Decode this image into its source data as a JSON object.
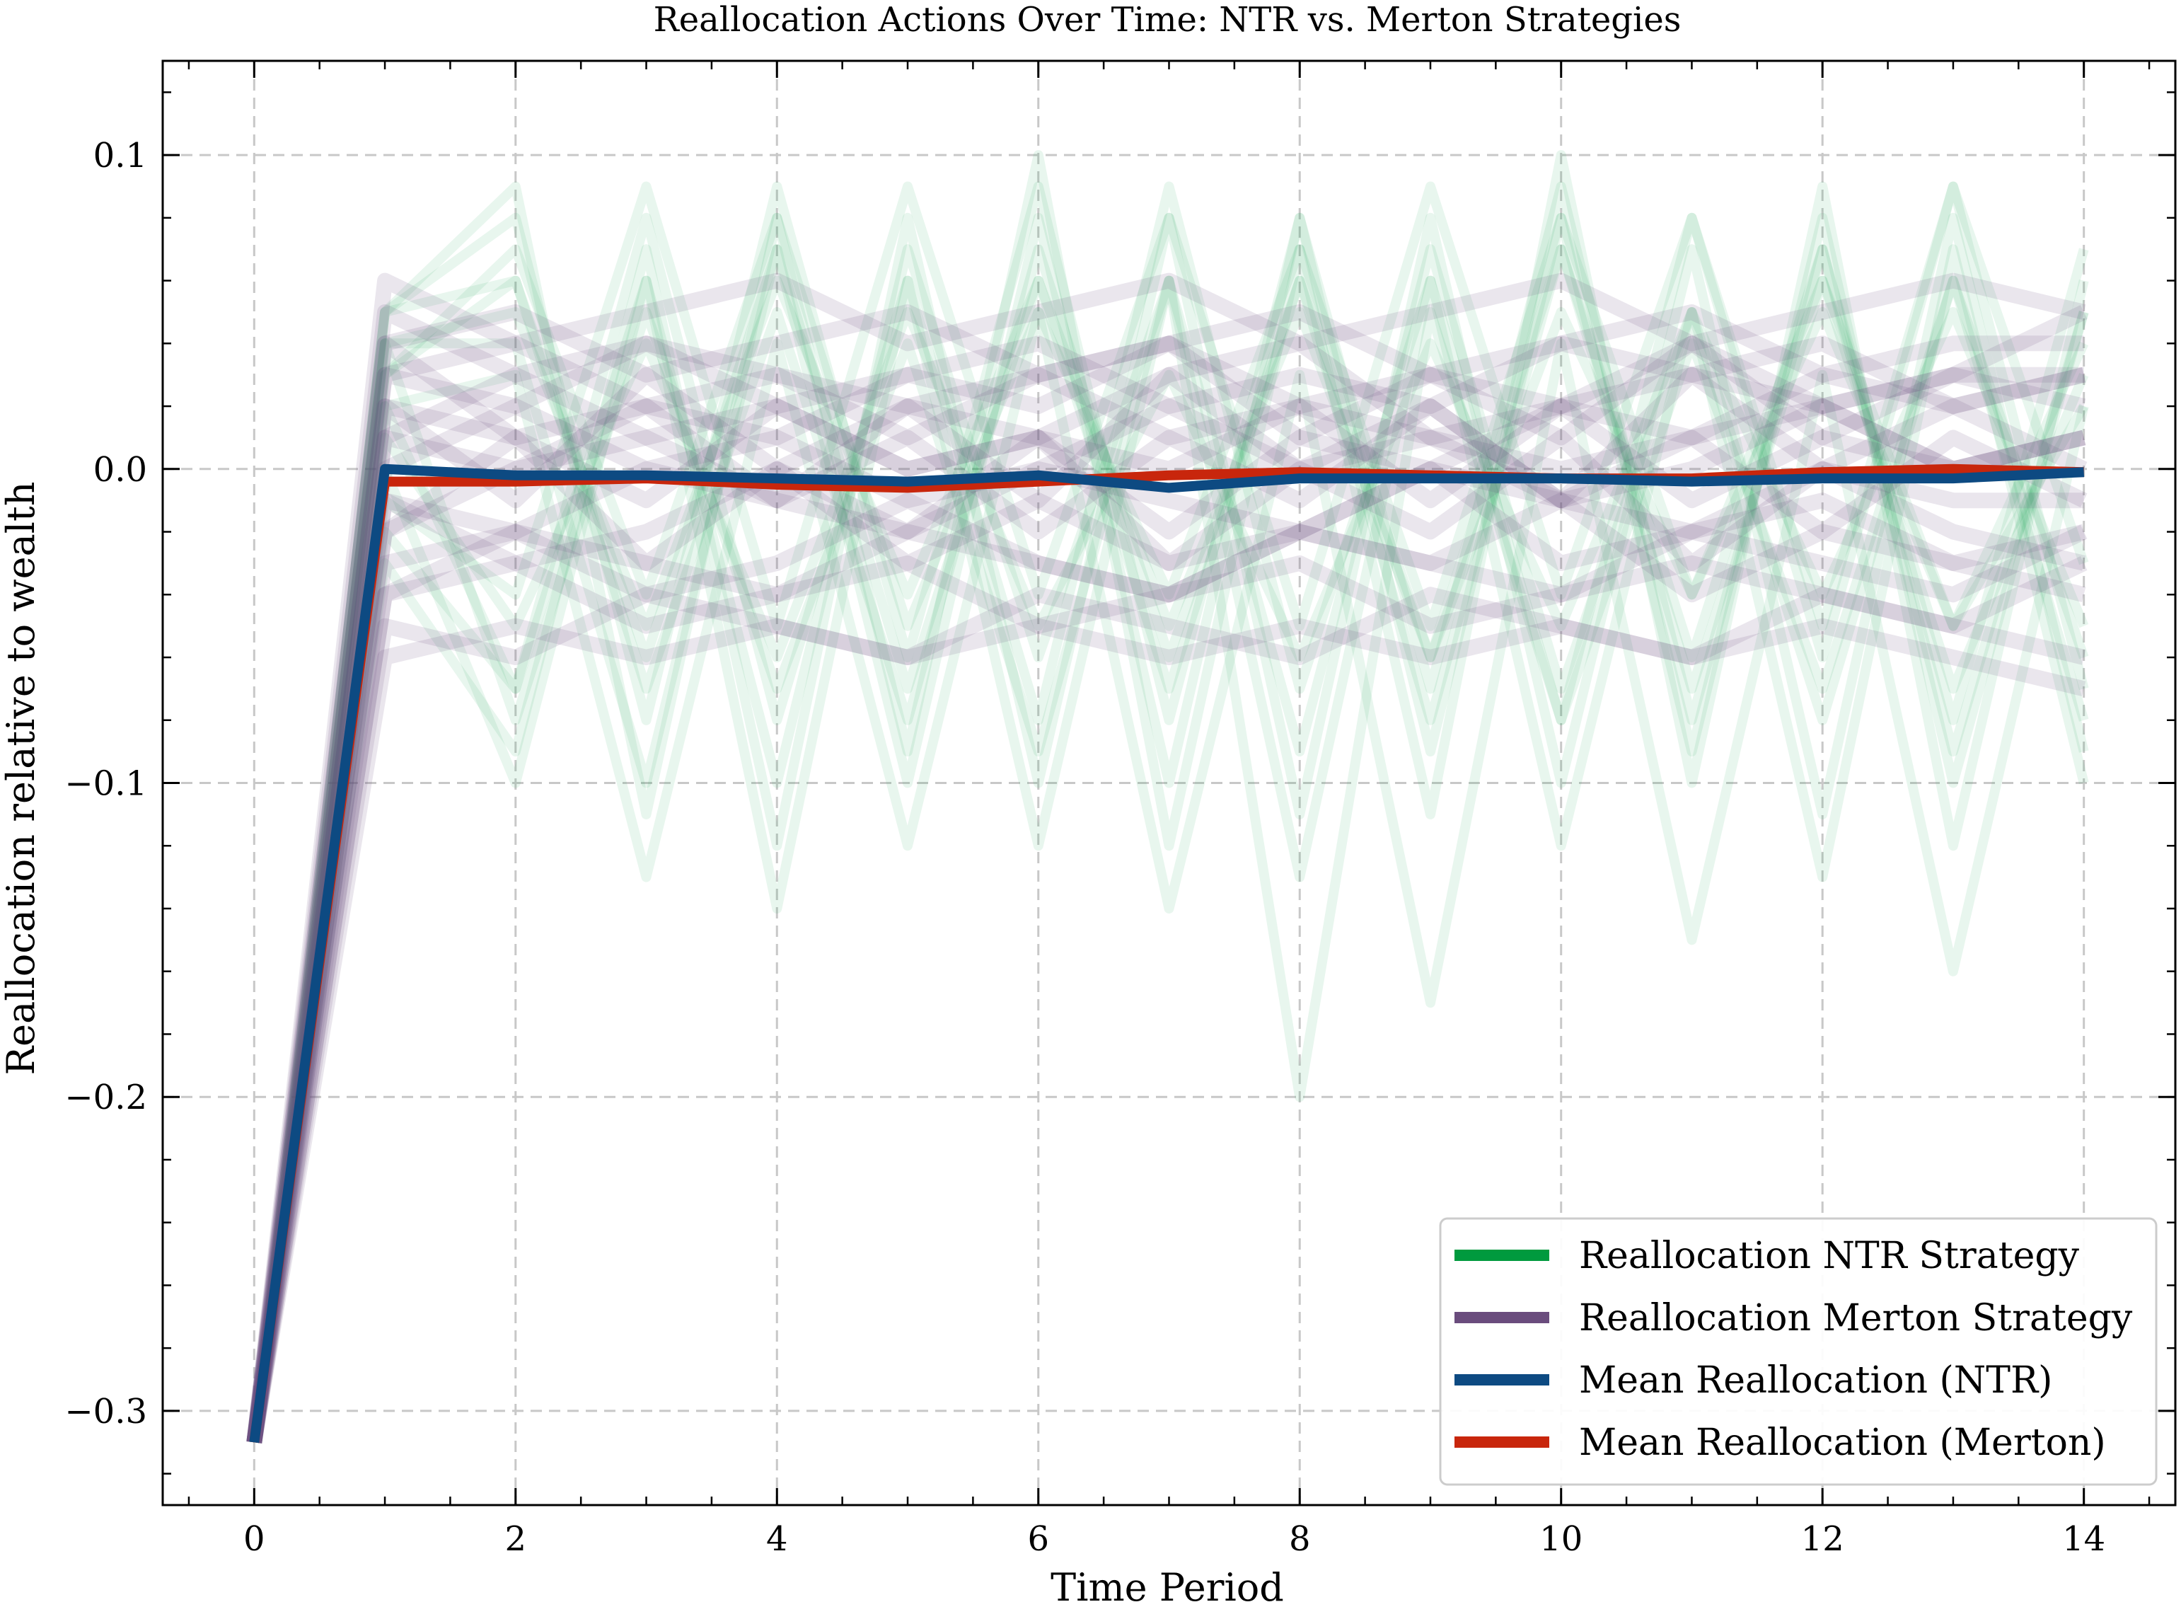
{
  "chart_data": {
    "type": "line",
    "title": "Reallocation Actions Over Time: NTR vs. Merton Strategies",
    "xlabel": "Time Period",
    "ylabel": "Reallocation relative to wealth",
    "xlim": [
      -0.7,
      14.7
    ],
    "ylim": [
      -0.33,
      0.13
    ],
    "xticks": [
      0,
      2,
      4,
      6,
      8,
      10,
      12,
      14
    ],
    "xtick_labels": [
      "0",
      "2",
      "4",
      "6",
      "8",
      "10",
      "12",
      "14"
    ],
    "yticks": [
      -0.3,
      -0.2,
      -0.1,
      0.0,
      0.1
    ],
    "ytick_labels": [
      "−0.3",
      "−0.2",
      "−0.1",
      "0.0",
      "0.1"
    ],
    "grid": true,
    "legend_position": "lower-right",
    "x": [
      0,
      1,
      2,
      3,
      4,
      5,
      6,
      7,
      8,
      9,
      10,
      11,
      12,
      13,
      14
    ],
    "series": [
      {
        "name": "Reallocation NTR Strategy",
        "color": "#009a3e",
        "style": "many semi-transparent paths, zig-zag between about -0.10 and +0.09",
        "sample_paths": [
          [
            -0.31,
            0.05,
            0.08,
            -0.08,
            0.09,
            -0.06,
            0.09,
            -0.08,
            0.08,
            -0.07,
            0.09,
            -0.08,
            0.07,
            -0.09,
            0.05
          ],
          [
            -0.31,
            0.02,
            -0.07,
            0.06,
            -0.1,
            0.07,
            -0.06,
            0.06,
            -0.09,
            0.07,
            -0.07,
            0.05,
            -0.08,
            0.06,
            -0.06
          ],
          [
            -0.31,
            0.04,
            0.05,
            -0.05,
            0.06,
            -0.04,
            0.06,
            -0.05,
            0.05,
            -0.06,
            0.05,
            -0.04,
            0.05,
            -0.05,
            0.04
          ],
          [
            -0.31,
            -0.03,
            -0.09,
            0.07,
            -0.12,
            0.08,
            -0.1,
            0.08,
            -0.11,
            0.08,
            -0.1,
            0.07,
            -0.11,
            0.08,
            -0.09
          ],
          [
            -0.31,
            0.05,
            0.09,
            -0.11,
            0.08,
            -0.09,
            0.1,
            -0.12,
            0.07,
            -0.11,
            0.1,
            -0.1,
            0.09,
            -0.12,
            0.06
          ],
          [
            -0.31,
            0.01,
            -0.05,
            0.04,
            -0.06,
            0.05,
            -0.05,
            0.03,
            -0.06,
            0.04,
            -0.05,
            0.05,
            -0.04,
            0.05,
            -0.05
          ],
          [
            -0.31,
            0.03,
            0.06,
            -0.07,
            0.05,
            -0.08,
            0.07,
            -0.06,
            0.06,
            -0.08,
            0.07,
            -0.07,
            0.06,
            -0.07,
            0.03
          ],
          [
            -0.31,
            -0.02,
            -0.07,
            0.08,
            -0.08,
            0.06,
            -0.08,
            0.09,
            -0.07,
            0.06,
            -0.08,
            0.08,
            -0.06,
            0.09,
            -0.07
          ],
          [
            -0.31,
            0.04,
            0.04,
            -0.1,
            0.07,
            -0.1,
            0.08,
            -0.1,
            0.08,
            -0.09,
            0.08,
            -0.09,
            0.08,
            -0.1,
            0.05
          ],
          [
            -0.31,
            0.0,
            -0.1,
            0.06,
            -0.14,
            0.06,
            -0.12,
            0.06,
            -0.13,
            0.06,
            -0.12,
            0.05,
            -0.13,
            0.07,
            -0.1
          ],
          [
            -0.31,
            0.03,
            0.07,
            -0.04,
            0.08,
            -0.05,
            0.05,
            -0.04,
            0.07,
            -0.05,
            0.08,
            -0.04,
            0.06,
            -0.05,
            0.02
          ],
          [
            -0.31,
            -0.01,
            -0.04,
            0.09,
            -0.05,
            0.09,
            -0.04,
            0.08,
            -0.05,
            0.09,
            -0.04,
            0.08,
            -0.05,
            0.09,
            -0.03
          ],
          [
            -0.31,
            0.02,
            0.03,
            -0.13,
            0.04,
            -0.12,
            0.05,
            -0.14,
            0.03,
            -0.17,
            0.04,
            -0.15,
            0.03,
            -0.16,
            0.02
          ],
          [
            -0.31,
            0.04,
            -0.08,
            0.05,
            -0.07,
            0.04,
            -0.09,
            0.06,
            -0.2,
            0.05,
            -0.08,
            0.04,
            -0.07,
            0.06,
            -0.08
          ],
          [
            -0.31,
            0.05,
            0.06,
            -0.06,
            0.07,
            -0.07,
            0.06,
            -0.07,
            0.06,
            -0.06,
            0.07,
            -0.06,
            0.07,
            -0.08,
            0.07
          ]
        ]
      },
      {
        "name": "Reallocation Merton Strategy",
        "color": "#6a4c7d",
        "style": "dense band of semi-transparent paths between about -0.06 and +0.06",
        "sample_paths": [
          [
            -0.31,
            0.05,
            0.03,
            0.04,
            0.02,
            0.03,
            0.04,
            0.02,
            0.03,
            0.02,
            0.04,
            0.03,
            0.02,
            0.03,
            0.03
          ],
          [
            -0.31,
            -0.04,
            -0.03,
            -0.05,
            -0.04,
            -0.03,
            -0.05,
            -0.04,
            -0.03,
            -0.05,
            -0.04,
            -0.03,
            -0.04,
            -0.05,
            -0.03
          ],
          [
            -0.31,
            0.02,
            0.01,
            -0.01,
            0.02,
            0.0,
            0.01,
            -0.02,
            0.01,
            0.0,
            0.02,
            -0.01,
            0.01,
            0.0,
            0.01
          ],
          [
            -0.31,
            -0.02,
            0.0,
            0.02,
            -0.01,
            0.01,
            -0.02,
            0.01,
            -0.01,
            0.02,
            -0.01,
            0.01,
            -0.02,
            0.01,
            -0.01
          ],
          [
            -0.31,
            0.04,
            0.05,
            0.03,
            0.04,
            0.05,
            0.03,
            0.04,
            0.05,
            0.03,
            0.04,
            0.05,
            0.03,
            0.04,
            0.04
          ],
          [
            -0.31,
            -0.05,
            -0.06,
            -0.04,
            -0.05,
            -0.06,
            -0.04,
            -0.05,
            -0.06,
            -0.04,
            -0.05,
            -0.06,
            -0.04,
            -0.05,
            -0.06
          ],
          [
            -0.31,
            0.01,
            0.03,
            0.01,
            -0.01,
            0.02,
            0.03,
            0.01,
            0.02,
            -0.01,
            0.02,
            0.01,
            0.03,
            0.02,
            0.0
          ],
          [
            -0.31,
            -0.01,
            -0.03,
            -0.02,
            0.0,
            -0.03,
            -0.01,
            -0.03,
            -0.02,
            0.0,
            -0.03,
            -0.02,
            -0.01,
            -0.03,
            -0.02
          ],
          [
            -0.31,
            0.03,
            0.02,
            0.04,
            0.03,
            0.01,
            0.03,
            0.04,
            0.02,
            0.03,
            0.01,
            0.04,
            0.02,
            0.03,
            0.05
          ],
          [
            -0.31,
            -0.03,
            -0.02,
            -0.04,
            -0.03,
            -0.01,
            -0.03,
            -0.04,
            -0.02,
            -0.03,
            -0.01,
            -0.04,
            -0.02,
            -0.03,
            -0.04
          ],
          [
            -0.31,
            0.06,
            0.04,
            0.05,
            0.06,
            0.04,
            0.05,
            0.06,
            0.04,
            0.05,
            0.06,
            0.04,
            0.05,
            0.06,
            0.05
          ],
          [
            -0.31,
            -0.06,
            -0.05,
            -0.06,
            -0.05,
            -0.06,
            -0.05,
            -0.06,
            -0.05,
            -0.06,
            -0.05,
            -0.06,
            -0.05,
            -0.06,
            -0.07
          ],
          [
            -0.31,
            0.0,
            0.02,
            0.0,
            0.01,
            -0.01,
            0.0,
            0.02,
            0.0,
            0.01,
            -0.01,
            0.0,
            0.02,
            0.0,
            0.01
          ],
          [
            -0.31,
            0.02,
            -0.01,
            0.03,
            0.0,
            0.02,
            -0.01,
            0.03,
            0.0,
            0.02,
            -0.01,
            0.03,
            0.0,
            0.02,
            0.03
          ],
          [
            -0.31,
            -0.02,
            0.01,
            -0.03,
            0.0,
            -0.02,
            0.01,
            -0.03,
            0.0,
            -0.02,
            0.01,
            -0.03,
            0.0,
            -0.02,
            -0.03
          ],
          [
            -0.31,
            0.01,
            0.0,
            0.01,
            0.02,
            0.0,
            0.01,
            0.0,
            0.02,
            0.01,
            0.0,
            0.01,
            0.02,
            0.0,
            0.01
          ],
          [
            -0.31,
            -0.01,
            -0.02,
            0.0,
            -0.01,
            -0.02,
            0.0,
            -0.01,
            -0.02,
            0.0,
            -0.01,
            -0.02,
            0.0,
            -0.01,
            -0.01
          ],
          [
            -0.31,
            0.03,
            0.04,
            0.02,
            0.01,
            0.03,
            0.02,
            0.04,
            0.01,
            0.03,
            0.02,
            0.04,
            0.01,
            0.03,
            0.02
          ],
          [
            -0.31,
            -0.04,
            -0.02,
            -0.03,
            -0.04,
            -0.02,
            -0.03,
            -0.04,
            -0.02,
            -0.03,
            -0.04,
            -0.02,
            -0.03,
            -0.04,
            -0.02
          ],
          [
            -0.31,
            0.04,
            0.01,
            0.02,
            0.03,
            0.02,
            0.01,
            0.03,
            0.04,
            0.01,
            0.02,
            0.03,
            0.04,
            0.02,
            0.03
          ]
        ]
      },
      {
        "name": "Mean Reallocation (NTR)",
        "color": "#0d4a82",
        "values": [
          -0.31,
          0.0,
          -0.002,
          -0.002,
          -0.003,
          -0.004,
          -0.002,
          -0.006,
          -0.003,
          -0.003,
          -0.003,
          -0.004,
          -0.003,
          -0.003,
          -0.001
        ]
      },
      {
        "name": "Mean Reallocation (Merton)",
        "color": "#c8260c",
        "values": [
          -0.31,
          -0.004,
          -0.004,
          -0.003,
          -0.005,
          -0.006,
          -0.004,
          -0.002,
          -0.001,
          -0.002,
          -0.003,
          -0.003,
          -0.001,
          0.0,
          -0.001
        ]
      }
    ]
  }
}
